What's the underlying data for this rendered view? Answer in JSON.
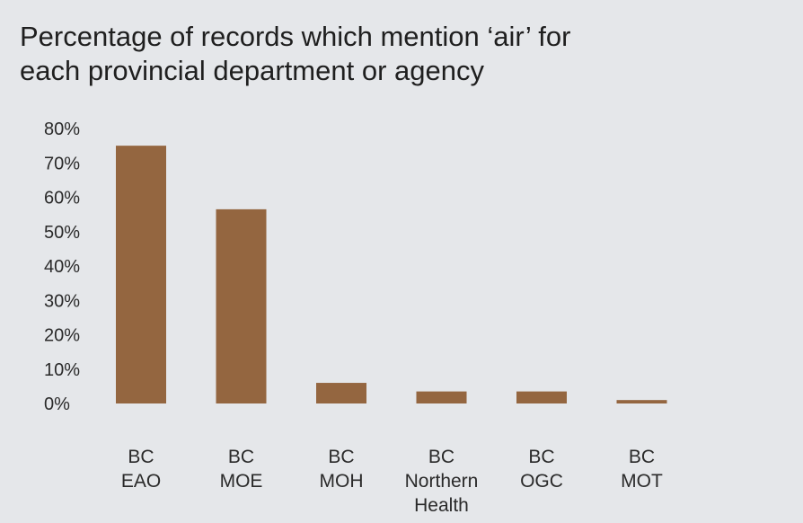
{
  "chart_data": {
    "type": "bar",
    "title_lines": [
      "Percentage of records which mention ‘air’ for",
      "each provincial department or agency"
    ],
    "categories": [
      [
        "BC",
        "EAO"
      ],
      [
        "BC",
        "MOE"
      ],
      [
        "BC",
        "MOH"
      ],
      [
        "BC",
        "Northern",
        "Health"
      ],
      [
        "BC",
        "OGC"
      ],
      [
        "BC",
        "MOT"
      ]
    ],
    "values": [
      75,
      56.5,
      6,
      3.5,
      3.5,
      1
    ],
    "ylim": [
      0,
      80
    ],
    "yticks": [
      0,
      10,
      20,
      30,
      40,
      50,
      60,
      70,
      80
    ],
    "ytick_labels": [
      "0%",
      "10%",
      "20%",
      "30%",
      "40%",
      "50%",
      "60%",
      "70%",
      "80%"
    ],
    "bar_color": "#946640",
    "grid": false,
    "legend": "none"
  }
}
